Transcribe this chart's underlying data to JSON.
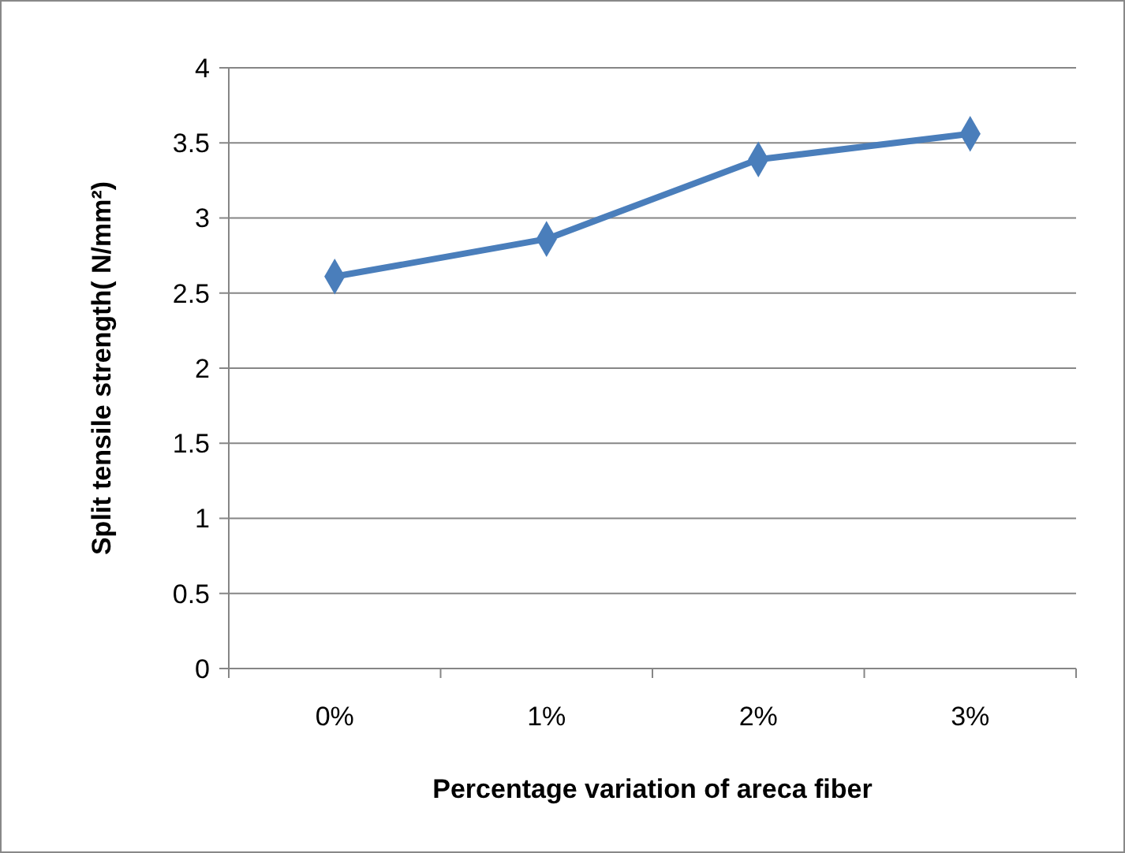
{
  "chart_data": {
    "type": "line",
    "xlabel": "Percentage variation of areca fiber",
    "ylabel": "Split tensile strength( N/mm²)",
    "categories": [
      "0%",
      "1%",
      "2%",
      "3%"
    ],
    "series": [
      {
        "color": "#4a7ebb",
        "values": [
          2.61,
          2.86,
          3.39,
          3.56
        ]
      }
    ],
    "ylim": [
      0,
      4
    ],
    "yticks": [
      0,
      0.5,
      1,
      1.5,
      2,
      2.5,
      3,
      3.5,
      4
    ],
    "grid": "y",
    "marker": "diamond",
    "line_style": "solid"
  }
}
